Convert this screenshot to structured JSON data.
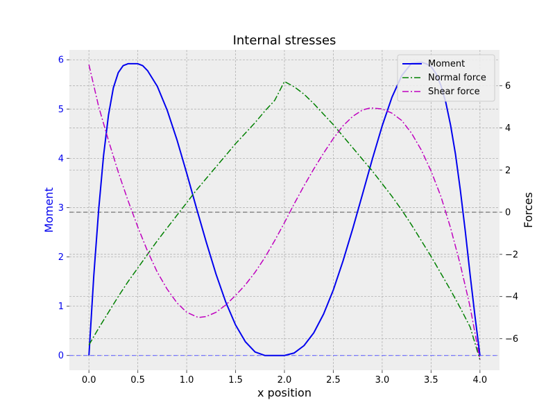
{
  "chart_data": {
    "type": "line",
    "title": "Internal stresses",
    "xlabel": "x position",
    "ylabel_left": "Moment",
    "ylabel_right": "Forces",
    "xlim": [
      -0.2,
      4.2
    ],
    "ylim_left": [
      -0.3,
      6.2
    ],
    "ylim_right": [
      -7.5,
      7.7
    ],
    "x_ticks": [
      0.0,
      0.5,
      1.0,
      1.5,
      2.0,
      2.5,
      3.0,
      3.5,
      4.0
    ],
    "x_tick_labels": [
      "0.0",
      "0.5",
      "1.0",
      "1.5",
      "2.0",
      "2.5",
      "3.0",
      "3.5",
      "4.0"
    ],
    "left_ticks": [
      0,
      1,
      2,
      3,
      4,
      5,
      6
    ],
    "left_tick_labels": [
      "0",
      "1",
      "2",
      "3",
      "4",
      "5",
      "6"
    ],
    "right_ticks": [
      -6,
      -4,
      -2,
      0,
      2,
      4,
      6
    ],
    "right_tick_labels": [
      "−6",
      "−4",
      "−2",
      "0",
      "2",
      "4",
      "6"
    ],
    "grid": true,
    "legend_position": "top-right",
    "reference_lines": [
      {
        "axis": "left",
        "y": 0,
        "color": "#6b6bff",
        "style": "dashed"
      },
      {
        "axis": "right",
        "y": 0,
        "color": "#666666",
        "style": "dashed"
      }
    ],
    "series": [
      {
        "name": "Moment",
        "axis": "left",
        "color": "#0000ee",
        "style": "solid",
        "x": [
          0.0,
          0.05,
          0.1,
          0.15,
          0.2,
          0.25,
          0.3,
          0.35,
          0.4,
          0.45,
          0.5,
          0.55,
          0.6,
          0.7,
          0.8,
          0.9,
          1.0,
          1.1,
          1.2,
          1.3,
          1.4,
          1.5,
          1.6,
          1.7,
          1.8,
          1.9,
          2.0,
          2.1,
          2.2,
          2.3,
          2.4,
          2.5,
          2.6,
          2.7,
          2.8,
          2.9,
          3.0,
          3.1,
          3.2,
          3.3,
          3.4,
          3.45,
          3.5,
          3.55,
          3.6,
          3.65,
          3.7,
          3.75,
          3.8,
          3.85,
          3.9,
          3.95,
          4.0
        ],
        "y": [
          0.0,
          1.62,
          2.97,
          4.06,
          4.88,
          5.43,
          5.74,
          5.88,
          5.92,
          5.92,
          5.92,
          5.88,
          5.78,
          5.46,
          4.98,
          4.38,
          3.7,
          2.99,
          2.3,
          1.65,
          1.08,
          0.62,
          0.28,
          0.07,
          0.0,
          0.0,
          0.0,
          0.05,
          0.2,
          0.46,
          0.84,
          1.33,
          1.92,
          2.58,
          3.28,
          3.99,
          4.66,
          5.24,
          5.68,
          5.93,
          5.95,
          5.92,
          5.86,
          5.72,
          5.48,
          5.14,
          4.67,
          4.08,
          3.35,
          2.52,
          1.63,
          0.78,
          0.0
        ]
      },
      {
        "name": "Normal force",
        "axis": "right",
        "color": "#008000",
        "style": "dashdot",
        "x": [
          0.0,
          0.1,
          0.2,
          0.3,
          0.4,
          0.5,
          0.6,
          0.7,
          0.8,
          0.9,
          1.0,
          1.1,
          1.2,
          1.3,
          1.4,
          1.5,
          1.6,
          1.7,
          1.8,
          1.9,
          2.0,
          2.1,
          2.2,
          2.3,
          2.4,
          2.5,
          2.6,
          2.7,
          2.8,
          2.9,
          3.0,
          3.1,
          3.2,
          3.3,
          3.4,
          3.5,
          3.6,
          3.7,
          3.8,
          3.9,
          4.0
        ],
        "y": [
          -6.3,
          -5.5,
          -4.75,
          -4.0,
          -3.3,
          -2.65,
          -2.0,
          -1.35,
          -0.75,
          -0.15,
          0.45,
          1.05,
          1.6,
          2.15,
          2.7,
          3.25,
          3.75,
          4.25,
          4.8,
          5.3,
          6.2,
          5.95,
          5.6,
          5.15,
          4.65,
          4.15,
          3.6,
          3.05,
          2.5,
          1.95,
          1.35,
          0.75,
          0.1,
          -0.6,
          -1.35,
          -2.1,
          -2.9,
          -3.7,
          -4.55,
          -5.45,
          -7.0
        ]
      },
      {
        "name": "Shear force",
        "axis": "right",
        "color": "#bf00bf",
        "style": "dashdot",
        "x": [
          0.0,
          0.1,
          0.2,
          0.3,
          0.4,
          0.5,
          0.6,
          0.7,
          0.8,
          0.9,
          1.0,
          1.12,
          1.2,
          1.3,
          1.4,
          1.5,
          1.6,
          1.7,
          1.8,
          1.9,
          2.0,
          2.1,
          2.2,
          2.3,
          2.4,
          2.5,
          2.6,
          2.7,
          2.8,
          2.88,
          3.0,
          3.1,
          3.2,
          3.3,
          3.4,
          3.5,
          3.6,
          3.7,
          3.8,
          3.9,
          4.0
        ],
        "y": [
          7.0,
          5.0,
          3.4,
          1.9,
          0.55,
          -0.7,
          -1.85,
          -2.85,
          -3.65,
          -4.3,
          -4.75,
          -5.0,
          -4.95,
          -4.75,
          -4.4,
          -3.95,
          -3.45,
          -2.85,
          -2.15,
          -1.35,
          -0.5,
          0.4,
          1.25,
          2.05,
          2.8,
          3.5,
          4.1,
          4.55,
          4.85,
          4.95,
          4.9,
          4.7,
          4.35,
          3.75,
          2.95,
          1.95,
          0.75,
          -0.75,
          -2.5,
          -4.5,
          -7.0
        ]
      }
    ]
  }
}
